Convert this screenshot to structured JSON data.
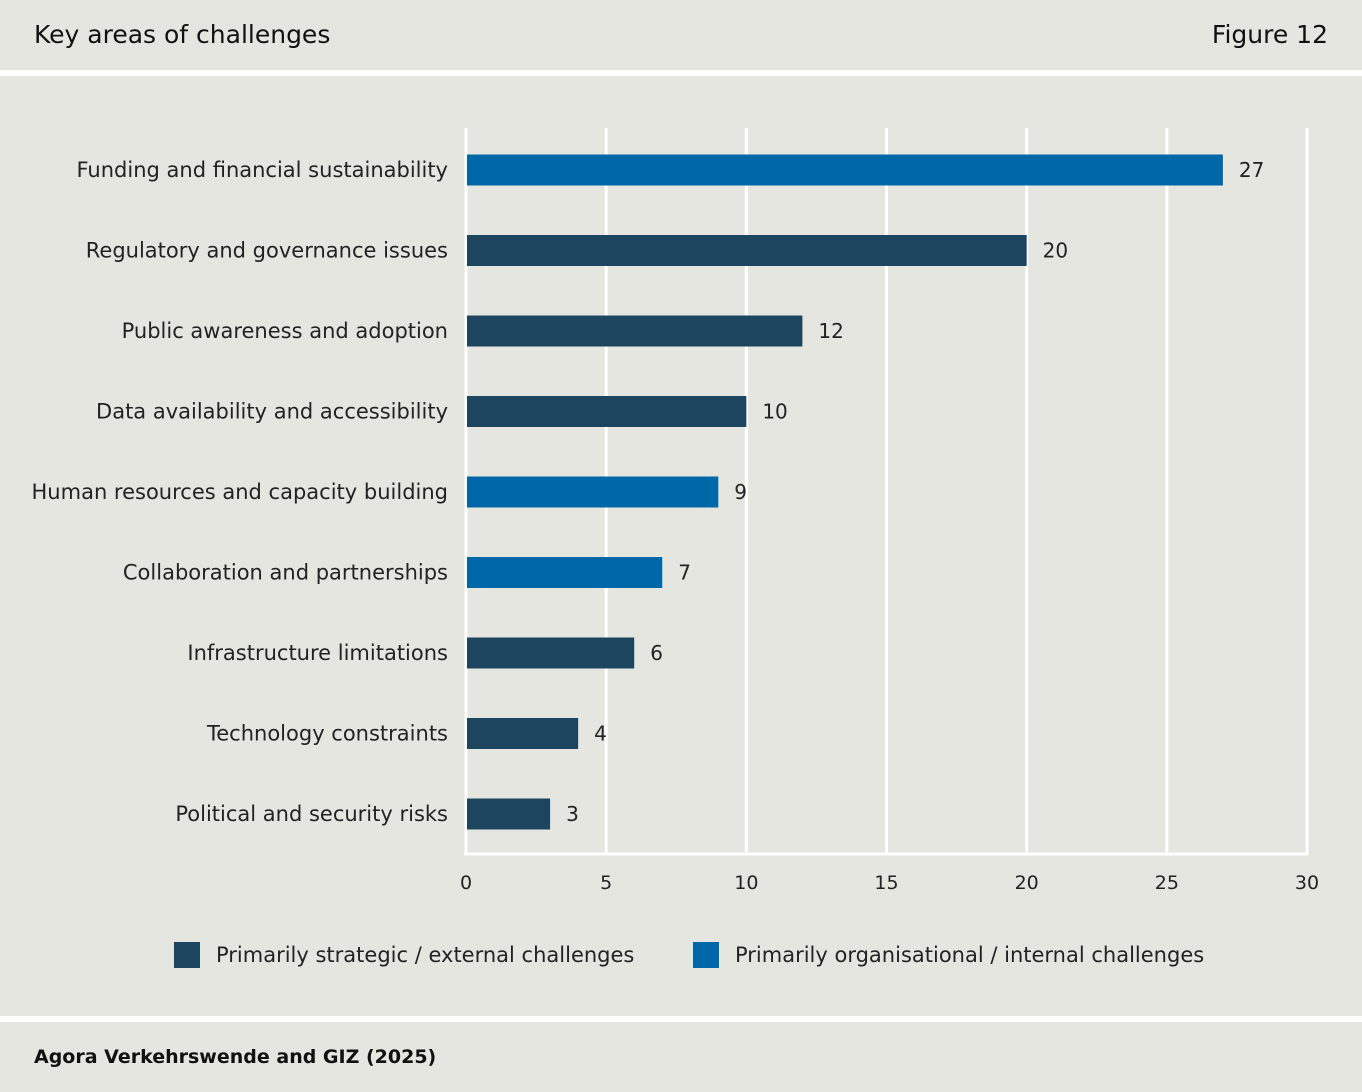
{
  "header": {
    "title": "Key areas of challenges",
    "figure_number": "Figure 12"
  },
  "footer": {
    "source": "Agora Verkehrswende and GIZ (2025)"
  },
  "colors": {
    "strategic": "#1d4560",
    "organisational": "#0068a8",
    "grid": "#ffffff",
    "panel": "#e6e6e1"
  },
  "chart_data": {
    "type": "bar",
    "orientation": "horizontal",
    "categories": [
      "Funding and financial sustainability",
      "Regulatory and governance issues",
      "Public awareness and adoption",
      "Data availability and accessibility",
      "Human resources and capacity building",
      "Collaboration and partnerships",
      "Infrastructure limitations",
      "Technology constraints",
      "Political and security risks"
    ],
    "values": [
      27,
      20,
      12,
      10,
      9,
      7,
      6,
      4,
      3
    ],
    "groups": [
      "organisational",
      "strategic",
      "strategic",
      "strategic",
      "organisational",
      "organisational",
      "strategic",
      "strategic",
      "strategic"
    ],
    "xlim": [
      0,
      30
    ],
    "xticks": [
      "0",
      "5",
      "10",
      "15",
      "20",
      "25",
      "30"
    ],
    "grid": true,
    "legend": {
      "placement": "bottom",
      "items": [
        {
          "key": "strategic",
          "label": "Primarily strategic / external challenges"
        },
        {
          "key": "organisational",
          "label": "Primarily organisational / internal challenges"
        }
      ]
    }
  }
}
